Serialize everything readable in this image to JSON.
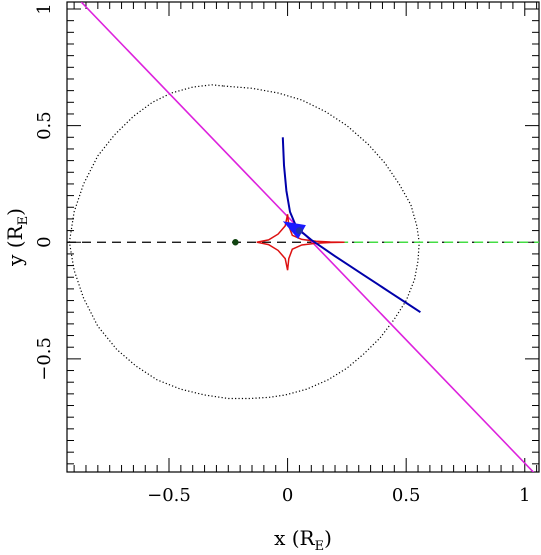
{
  "chart_data": {
    "type": "line",
    "xlabel": "x (R",
    "xlabel_sub": "E",
    "xlabel_end": ")",
    "ylabel": "y (R",
    "ylabel_sub": "E",
    "ylabel_end": ")",
    "xlim": [
      -0.93,
      1.06
    ],
    "ylim": [
      -0.985,
      1.03
    ],
    "x_ticks": [
      -0.5,
      0,
      0.5,
      1
    ],
    "x_tick_labels": [
      "−0.5",
      "0",
      "0.5",
      "1"
    ],
    "y_ticks": [
      -0.5,
      0,
      0.5,
      1
    ],
    "y_tick_labels": [
      "−0.5",
      "0",
      "0.5",
      "1"
    ],
    "grid": false,
    "colors": {
      "critical_curve": "#000000",
      "lens_axis": "#000000",
      "caustic": "#dd1111",
      "source_track": "#0000aa",
      "source_arrow": "#1a1aff",
      "trajectory": "#dd22dd",
      "green_segment": "#44dd44",
      "source_dot": "#2233aa",
      "lens_dot": "#114411"
    },
    "critical_curve": {
      "x": [
        -0.27,
        -0.15,
        -0.04,
        0.06,
        0.16,
        0.25,
        0.34,
        0.41,
        0.47,
        0.52,
        0.545,
        0.555,
        0.55,
        0.535,
        0.5,
        0.45,
        0.39,
        0.32,
        0.25,
        0.17,
        0.08,
        -0.01,
        -0.08,
        -0.16,
        -0.25,
        -0.35,
        -0.45,
        -0.55,
        -0.64,
        -0.72,
        -0.8,
        -0.86,
        -0.9,
        -0.92,
        -0.9,
        -0.86,
        -0.8,
        -0.73,
        -0.65,
        -0.57,
        -0.49,
        -0.4,
        -0.32,
        -0.27
      ],
      "y": [
        0.67,
        0.66,
        0.64,
        0.61,
        0.56,
        0.5,
        0.42,
        0.34,
        0.25,
        0.16,
        0.07,
        0.0,
        -0.08,
        -0.16,
        -0.25,
        -0.33,
        -0.41,
        -0.48,
        -0.54,
        -0.59,
        -0.63,
        -0.655,
        -0.665,
        -0.67,
        -0.67,
        -0.655,
        -0.63,
        -0.59,
        -0.53,
        -0.46,
        -0.36,
        -0.24,
        -0.12,
        0.0,
        0.13,
        0.25,
        0.37,
        0.46,
        0.54,
        0.6,
        0.64,
        0.665,
        0.675,
        0.67
      ]
    },
    "lens_axis": {
      "x": [
        -0.93,
        1.06
      ],
      "y": [
        0,
        0
      ]
    },
    "green_segment": {
      "x": [
        0.23,
        1.06
      ],
      "y": [
        0,
        0
      ]
    },
    "caustic": {
      "x": [
        -0.13,
        -0.08,
        -0.04,
        -0.01,
        0.0,
        0.005,
        0.02,
        0.06,
        0.12,
        0.18,
        0.24,
        0.18,
        0.12,
        0.06,
        0.02,
        0.005,
        0.0,
        -0.01,
        -0.04,
        -0.08,
        -0.13
      ],
      "y": [
        0.0,
        0.01,
        0.035,
        0.07,
        0.12,
        0.07,
        0.03,
        0.012,
        0.004,
        0.001,
        0.0,
        -0.001,
        -0.004,
        -0.012,
        -0.03,
        -0.07,
        -0.12,
        -0.07,
        -0.035,
        -0.01,
        0.0
      ]
    },
    "source_track": {
      "x": [
        -0.02,
        -0.015,
        -0.005,
        0.01,
        0.035,
        0.05,
        0.07,
        0.1,
        0.15,
        0.2,
        0.26,
        0.32,
        0.38,
        0.44,
        0.5,
        0.56
      ],
      "y": [
        0.45,
        0.33,
        0.22,
        0.13,
        0.07,
        0.05,
        0.035,
        0.01,
        -0.025,
        -0.06,
        -0.1,
        -0.14,
        -0.18,
        -0.22,
        -0.26,
        -0.3
      ]
    },
    "source_arrow": {
      "tip": [
        -0.02,
        0.09
      ],
      "tail": [
        0.05,
        0.05
      ]
    },
    "source_position": {
      "x": 0.05,
      "y": 0.05
    },
    "lens_position": {
      "x": -0.22,
      "y": 0.0
    },
    "trajectory": {
      "x": [
        -0.87,
        1.05
      ],
      "y": [
        1.03,
        -1.0
      ]
    }
  }
}
